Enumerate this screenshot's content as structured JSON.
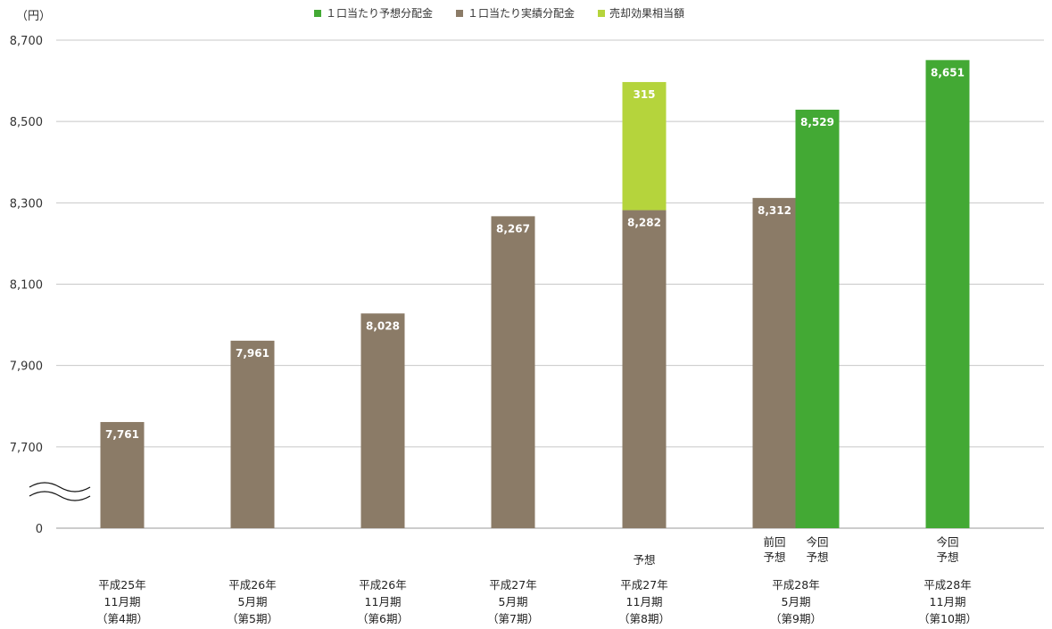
{
  "chart_data": {
    "type": "bar",
    "unit_label": "（円）",
    "y_ticks": [
      "8,700",
      "8,500",
      "8,300",
      "8,100",
      "7,900",
      "7,700",
      "0"
    ],
    "y_tick_values": [
      8700,
      8500,
      8300,
      8100,
      7900,
      7700,
      7500
    ],
    "ylim": [
      7500,
      8700
    ],
    "axis_break": true,
    "grid": true,
    "legend_position": "top",
    "legend": [
      {
        "label": "１口当たり予想分配金",
        "color": "#43a934"
      },
      {
        "label": "１口当たり実績分配金",
        "color": "#8b7b67"
      },
      {
        "label": "売却効果相当額",
        "color": "#b5d43c"
      }
    ],
    "categories": [
      {
        "lines": [
          "平成25年",
          "11月期",
          "（第4期）"
        ],
        "note": []
      },
      {
        "lines": [
          "平成26年",
          "5月期",
          "（第5期）"
        ],
        "note": []
      },
      {
        "lines": [
          "平成26年",
          "11月期",
          "（第6期）"
        ],
        "note": []
      },
      {
        "lines": [
          "平成27年",
          "5月期",
          "（第7期）"
        ],
        "note": []
      },
      {
        "lines": [
          "平成27年",
          "11月期",
          "（第8期）"
        ],
        "note": [
          "予想"
        ]
      },
      {
        "lines": [
          "平成28年",
          "5月期",
          "（第9期）"
        ],
        "note": []
      },
      {
        "lines": [
          "平成28年",
          "11月期",
          "（第10期）"
        ],
        "note": []
      }
    ],
    "bars": [
      {
        "category": 0,
        "segments": [
          {
            "series": "actual",
            "value": 7761,
            "label": "7,761"
          }
        ]
      },
      {
        "category": 1,
        "segments": [
          {
            "series": "actual",
            "value": 7961,
            "label": "7,961"
          }
        ]
      },
      {
        "category": 2,
        "segments": [
          {
            "series": "actual",
            "value": 8028,
            "label": "8,028"
          }
        ]
      },
      {
        "category": 3,
        "segments": [
          {
            "series": "actual",
            "value": 8267,
            "label": "8,267"
          }
        ]
      },
      {
        "category": 4,
        "segments": [
          {
            "series": "actual",
            "value": 8282,
            "label": "8,282"
          },
          {
            "series": "sale_effect",
            "value": 315,
            "label": "315"
          }
        ]
      },
      {
        "category": 5,
        "slot": "left",
        "sublabel": [
          "前回",
          "予想"
        ],
        "segments": [
          {
            "series": "actual",
            "value": 8312,
            "label": "8,312"
          }
        ]
      },
      {
        "category": 5,
        "slot": "right",
        "sublabel": [
          "今回",
          "予想"
        ],
        "segments": [
          {
            "series": "forecast",
            "value": 8529,
            "label": "8,529"
          }
        ]
      },
      {
        "category": 6,
        "sublabel": [
          "今回",
          "予想"
        ],
        "segments": [
          {
            "series": "forecast",
            "value": 8651,
            "label": "8,651"
          }
        ]
      }
    ],
    "series_colors": {
      "actual": "#8b7b67",
      "forecast": "#43a934",
      "sale_effect": "#b5d43c"
    }
  }
}
